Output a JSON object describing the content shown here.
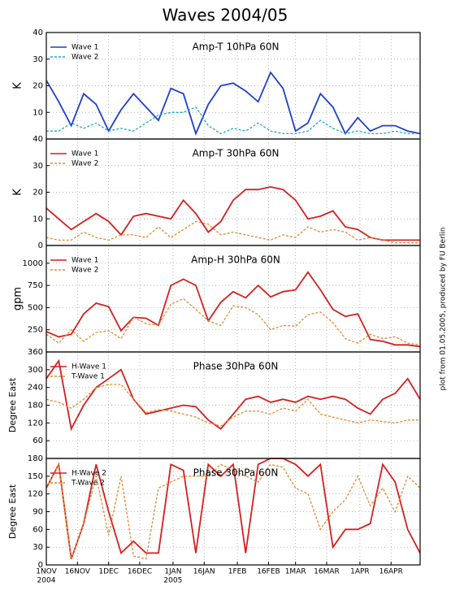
{
  "title": "Waves 2004/05",
  "credit": "plot from 01.05.2005, produced by FU Berlin",
  "xaxis": {
    "xlim": [
      "2004-11-01",
      "2005-04-30"
    ],
    "xticks": [
      {
        "value": "2004-11-01",
        "label": "1NOV"
      },
      {
        "value": "2004-11-16",
        "label": "16NOV"
      },
      {
        "value": "2004-12-01",
        "label": "1DEC"
      },
      {
        "value": "2004-12-16",
        "label": "16DEC"
      },
      {
        "value": "2005-01-01",
        "label": "1JAN"
      },
      {
        "value": "2005-01-16",
        "label": "16JAN"
      },
      {
        "value": "2005-02-01",
        "label": "1FEB"
      },
      {
        "value": "2005-02-16",
        "label": "16FEB"
      },
      {
        "value": "2005-03-01",
        "label": "1MAR"
      },
      {
        "value": "2005-03-16",
        "label": "16MAR"
      },
      {
        "value": "2005-04-01",
        "label": "1APR"
      },
      {
        "value": "2005-04-16",
        "label": "16APR"
      }
    ],
    "xyears": [
      {
        "value": "2004-11-01",
        "label": "2004"
      },
      {
        "value": "2005-01-01",
        "label": "2005"
      }
    ],
    "x": [
      "2004-11-01",
      "2004-11-07",
      "2004-11-13",
      "2004-11-19",
      "2004-11-25",
      "2004-12-01",
      "2004-12-07",
      "2004-12-13",
      "2004-12-19",
      "2004-12-25",
      "2004-12-31",
      "2005-01-06",
      "2005-01-12",
      "2005-01-18",
      "2005-01-24",
      "2005-01-30",
      "2005-02-05",
      "2005-02-11",
      "2005-02-17",
      "2005-02-23",
      "2005-03-01",
      "2005-03-07",
      "2005-03-13",
      "2005-03-19",
      "2005-03-25",
      "2005-03-31",
      "2005-04-06",
      "2005-04-12",
      "2005-04-18",
      "2005-04-24",
      "2005-04-30"
    ]
  },
  "chart_data": [
    {
      "type": "line",
      "title": "Amp-T 10hPa 60N",
      "ylabel": "K",
      "ylim": [
        0,
        40
      ],
      "yticks": [
        10,
        20,
        30,
        40
      ],
      "grid": true,
      "legend": "upper left",
      "series": [
        {
          "name": "Wave 1",
          "color": "#1f3fcc",
          "dash": false,
          "values": [
            22,
            14,
            5,
            17,
            13,
            3,
            11,
            17,
            12,
            7,
            19,
            17,
            2,
            13,
            20,
            21,
            18,
            14,
            25,
            19,
            3,
            6,
            17,
            12,
            2,
            8,
            3,
            5,
            5,
            3,
            2
          ]
        },
        {
          "name": "Wave 2",
          "color": "#1ea8cc",
          "dash": true,
          "values": [
            3,
            3,
            6,
            4,
            6,
            3,
            4,
            3,
            6,
            9,
            10,
            10,
            12,
            5,
            2,
            4,
            3,
            6,
            3,
            2,
            2,
            3,
            7,
            4,
            2,
            3,
            2,
            2,
            3,
            2,
            2
          ]
        }
      ]
    },
    {
      "type": "line",
      "title": "Amp-T 30hPa 60N",
      "ylabel": "K",
      "ylim": [
        0,
        40
      ],
      "yticks": [
        0,
        10,
        20,
        30,
        40
      ],
      "grid": true,
      "legend": "upper left",
      "series": [
        {
          "name": "Wave 1",
          "color": "#d42020",
          "dash": false,
          "values": [
            14,
            10,
            6,
            9,
            12,
            9,
            4,
            11,
            12,
            11,
            10,
            17,
            12,
            5,
            9,
            17,
            21,
            21,
            22,
            21,
            17,
            10,
            11,
            13,
            7,
            6,
            3,
            2,
            2,
            2,
            2
          ]
        },
        {
          "name": "Wave 2",
          "color": "#e08a30",
          "dash": true,
          "values": [
            3,
            2,
            2,
            5,
            3,
            2,
            4,
            4,
            3,
            7,
            3,
            6,
            9,
            8,
            4,
            5,
            4,
            3,
            2,
            4,
            3,
            7,
            5,
            6,
            5,
            2,
            3,
            2,
            1,
            1,
            1
          ]
        }
      ]
    },
    {
      "type": "line",
      "title": "Amp-H 30hPa 60N",
      "ylabel": "gpm",
      "ylim": [
        0,
        1200
      ],
      "yticks": [
        250,
        500,
        750,
        1000
      ],
      "grid": true,
      "legend": "upper left",
      "series": [
        {
          "name": "Wave 1",
          "color": "#d42020",
          "dash": false,
          "values": [
            230,
            170,
            200,
            430,
            550,
            510,
            240,
            390,
            380,
            300,
            750,
            820,
            750,
            350,
            560,
            680,
            610,
            750,
            620,
            680,
            700,
            900,
            700,
            480,
            400,
            430,
            140,
            120,
            80,
            80,
            60
          ]
        },
        {
          "name": "Wave 2",
          "color": "#e08a30",
          "dash": true,
          "values": [
            200,
            100,
            250,
            120,
            220,
            240,
            150,
            390,
            320,
            300,
            540,
            600,
            480,
            350,
            300,
            520,
            500,
            420,
            250,
            300,
            290,
            420,
            450,
            330,
            150,
            100,
            200,
            150,
            170,
            100,
            80
          ]
        }
      ]
    },
    {
      "type": "line",
      "title": "Phase 30hPa 60N",
      "ylabel": "Degree East",
      "ylim": [
        0,
        360
      ],
      "yticks": [
        60,
        120,
        180,
        240,
        300,
        360
      ],
      "grid": true,
      "legend": "upper left",
      "series": [
        {
          "name": "H-Wave 1",
          "color": "#d42020",
          "dash": false,
          "values": [
            270,
            330,
            100,
            180,
            240,
            270,
            300,
            200,
            150,
            160,
            170,
            180,
            175,
            130,
            100,
            150,
            200,
            210,
            190,
            200,
            190,
            210,
            200,
            210,
            200,
            170,
            150,
            200,
            220,
            270,
            200
          ]
        },
        {
          "name": "T-Wave 1",
          "color": "#e08a30",
          "dash": true,
          "values": [
            200,
            190,
            170,
            200,
            240,
            250,
            250,
            200,
            155,
            165,
            160,
            150,
            140,
            120,
            110,
            140,
            160,
            160,
            150,
            170,
            160,
            200,
            150,
            140,
            130,
            120,
            130,
            125,
            120,
            130,
            130
          ]
        }
      ]
    },
    {
      "type": "line",
      "title": "Phase 30hPa 60N",
      "ylabel": "Degree East",
      "ylim": [
        0,
        180
      ],
      "yticks": [
        0,
        30,
        60,
        90,
        120,
        150,
        180
      ],
      "grid": true,
      "legend": "upper left",
      "series": [
        {
          "name": "H-Wave 2",
          "color": "#d42020",
          "dash": false,
          "values": [
            130,
            170,
            10,
            70,
            170,
            90,
            20,
            40,
            20,
            20,
            170,
            160,
            20,
            170,
            150,
            170,
            20,
            170,
            180,
            180,
            170,
            150,
            170,
            30,
            60,
            60,
            70,
            170,
            140,
            60,
            20
          ]
        },
        {
          "name": "T-Wave 2",
          "color": "#e08a30",
          "dash": true,
          "values": [
            130,
            170,
            10,
            70,
            150,
            50,
            150,
            15,
            10,
            130,
            140,
            150,
            150,
            150,
            170,
            160,
            150,
            140,
            170,
            165,
            130,
            120,
            60,
            90,
            110,
            150,
            100,
            130,
            90,
            150,
            130
          ]
        }
      ]
    }
  ]
}
